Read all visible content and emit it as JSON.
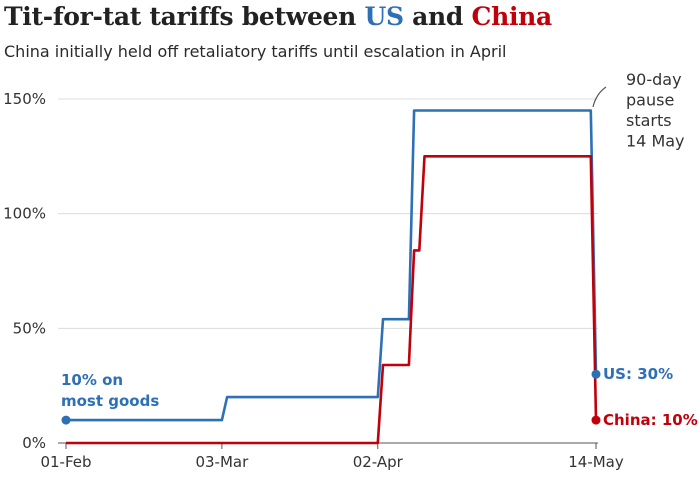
{
  "header": {
    "title_part1": "Tit-for-tat tariffs between ",
    "title_us": "US",
    "title_part2": " and ",
    "title_china": "China",
    "subtitle": "China initially held off retaliatory tariffs until escalation in April"
  },
  "chart_data": {
    "type": "line",
    "title": "Tit-for-tat tariffs between US and China",
    "subtitle": "China initially held off retaliatory tariffs until escalation in April",
    "x_tick_labels": [
      "01-Feb",
      "03-Mar",
      "02-Apr",
      "14-May"
    ],
    "y_tick_labels": [
      "0%",
      "50%",
      "100%",
      "150%"
    ],
    "ylim": [
      0,
      150
    ],
    "xlim": [
      "2025-02-01",
      "2025-05-14"
    ],
    "grid": "horizontal",
    "series": [
      {
        "name": "US",
        "color": "#2e70b6",
        "points": [
          [
            "2025-02-01",
            10
          ],
          [
            "2025-03-03",
            10
          ],
          [
            "2025-03-04",
            20
          ],
          [
            "2025-04-02",
            20
          ],
          [
            "2025-04-03",
            54
          ],
          [
            "2025-04-08",
            54
          ],
          [
            "2025-04-09",
            145
          ],
          [
            "2025-05-13",
            145
          ],
          [
            "2025-05-14",
            30
          ]
        ]
      },
      {
        "name": "China",
        "color": "#c0000a",
        "points": [
          [
            "2025-02-01",
            0
          ],
          [
            "2025-04-02",
            0
          ],
          [
            "2025-04-03",
            34
          ],
          [
            "2025-04-08",
            34
          ],
          [
            "2025-04-09",
            84
          ],
          [
            "2025-04-10",
            84
          ],
          [
            "2025-04-11",
            125
          ],
          [
            "2025-05-13",
            125
          ],
          [
            "2025-05-14",
            10
          ]
        ]
      }
    ],
    "annotations": {
      "start_label_line1": "10% on",
      "start_label_line2": "most goods",
      "pause_line1": "90-day",
      "pause_line2": "pause",
      "pause_line3": "starts",
      "pause_line4": "14 May",
      "us_end_label": "US: 30%",
      "china_end_label": "China: 10%"
    }
  }
}
